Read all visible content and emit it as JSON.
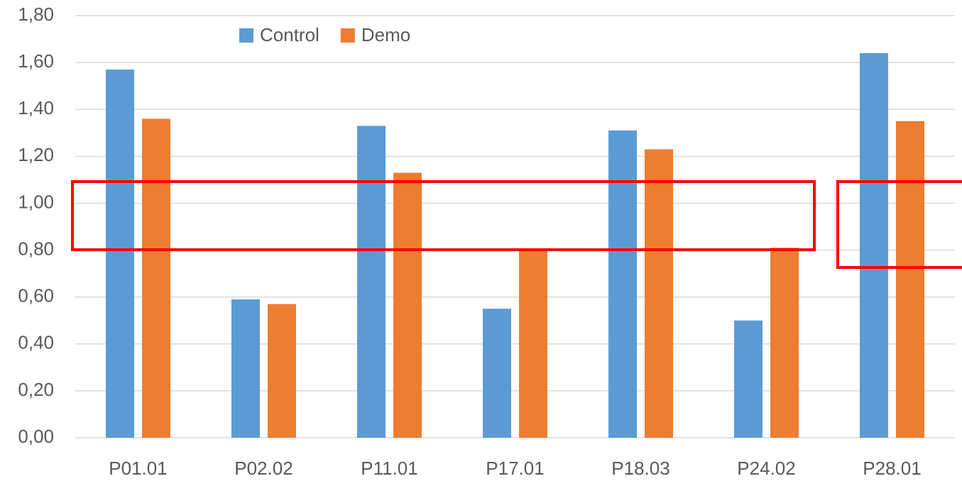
{
  "chart_data": {
    "type": "bar",
    "categories": [
      "P01.01",
      "P02.02",
      "P11.01",
      "P17.01",
      "P18.03",
      "P24.02",
      "P28.01"
    ],
    "series": [
      {
        "name": "Control",
        "color": "#5b9bd5",
        "values": [
          1.57,
          0.59,
          1.33,
          0.55,
          1.31,
          0.5,
          1.64
        ]
      },
      {
        "name": "Demo",
        "color": "#ed7d31",
        "values": [
          1.36,
          0.57,
          1.13,
          0.8,
          1.23,
          0.81,
          1.35
        ]
      }
    ],
    "ylim": [
      0,
      1.8
    ],
    "yticks": [
      {
        "value": 0,
        "label": "0,00"
      },
      {
        "value": 0.2,
        "label": "0,20"
      },
      {
        "value": 0.4,
        "label": "0,40"
      },
      {
        "value": 0.6,
        "label": "0,60"
      },
      {
        "value": 0.8,
        "label": "0,80"
      },
      {
        "value": 1.0,
        "label": "1,00"
      },
      {
        "value": 1.2,
        "label": "1,20"
      },
      {
        "value": 1.4,
        "label": "1,40"
      },
      {
        "value": 1.6,
        "label": "1,60"
      },
      {
        "value": 1.8,
        "label": "1,80"
      }
    ],
    "grid": true,
    "legend": "top"
  }
}
